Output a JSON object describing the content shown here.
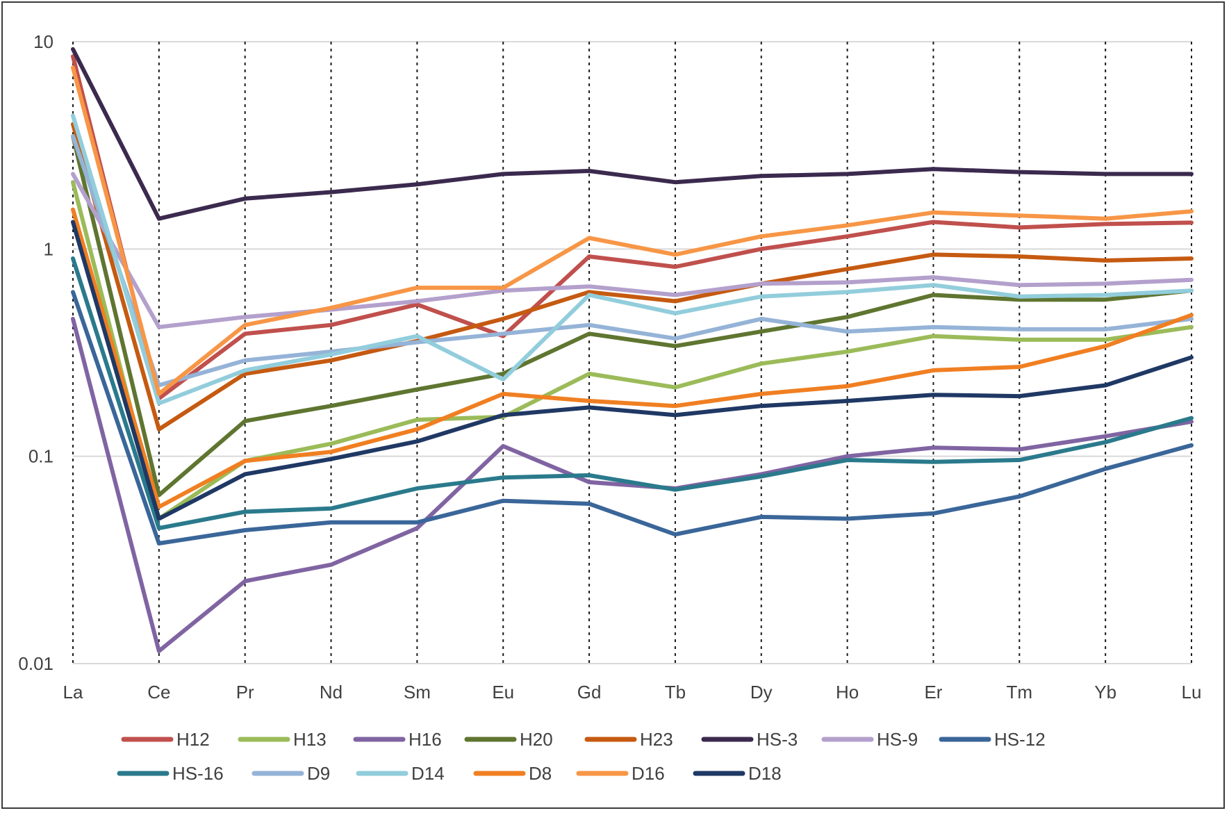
{
  "chart_data": {
    "type": "line",
    "title": "",
    "xlabel": "",
    "ylabel": "",
    "yscale": "log",
    "ylim": [
      0.01,
      10
    ],
    "y_ticks": [
      "10",
      "1",
      "0.1",
      "0.01"
    ],
    "y_tick_values": [
      10,
      1,
      0.1,
      0.01
    ],
    "categories": [
      "La",
      "Ce",
      "Pr",
      "Nd",
      "Sm",
      "Eu",
      "Gd",
      "Tb",
      "Dy",
      "Ho",
      "Er",
      "Tm",
      "Yb",
      "Lu"
    ],
    "grid": {
      "horizontal": true,
      "vertical_dotted": true
    },
    "legend_position": "bottom",
    "series": [
      {
        "name": "H12",
        "color": "#C0504D",
        "values": [
          8.5,
          0.19,
          0.39,
          0.43,
          0.54,
          0.38,
          0.92,
          0.82,
          1.0,
          1.15,
          1.35,
          1.27,
          1.32,
          1.34
        ]
      },
      {
        "name": "H13",
        "color": "#9BBB59",
        "values": [
          2.1,
          0.05,
          0.095,
          0.115,
          0.15,
          0.155,
          0.25,
          0.215,
          0.28,
          0.32,
          0.38,
          0.365,
          0.365,
          0.42
        ]
      },
      {
        "name": "H16",
        "color": "#8064A2",
        "values": [
          0.46,
          0.0115,
          0.025,
          0.03,
          0.045,
          0.112,
          0.075,
          0.07,
          0.082,
          0.1,
          0.11,
          0.108,
          0.125,
          0.147
        ]
      },
      {
        "name": "H20",
        "color": "#5F7530",
        "values": [
          3.5,
          0.065,
          0.148,
          0.175,
          0.21,
          0.25,
          0.39,
          0.34,
          0.4,
          0.47,
          0.6,
          0.57,
          0.57,
          0.63
        ]
      },
      {
        "name": "H23",
        "color": "#C55A11",
        "values": [
          4.0,
          0.135,
          0.25,
          0.29,
          0.36,
          0.46,
          0.62,
          0.56,
          0.68,
          0.8,
          0.94,
          0.92,
          0.88,
          0.9
        ]
      },
      {
        "name": "HS-3",
        "color": "#3B2A4E",
        "values": [
          9.2,
          1.4,
          1.75,
          1.88,
          2.05,
          2.3,
          2.38,
          2.1,
          2.25,
          2.3,
          2.43,
          2.35,
          2.3,
          2.3
        ]
      },
      {
        "name": "HS-9",
        "color": "#B4A0CC",
        "values": [
          2.3,
          0.42,
          0.47,
          0.51,
          0.56,
          0.63,
          0.66,
          0.6,
          0.68,
          0.69,
          0.73,
          0.67,
          0.68,
          0.71
        ]
      },
      {
        "name": "HS-12",
        "color": "#3A6699",
        "values": [
          0.62,
          0.038,
          0.044,
          0.048,
          0.048,
          0.061,
          0.059,
          0.042,
          0.051,
          0.05,
          0.053,
          0.064,
          0.087,
          0.113
        ]
      },
      {
        "name": "HS-16",
        "color": "#2A7A8C",
        "values": [
          0.9,
          0.045,
          0.054,
          0.056,
          0.07,
          0.079,
          0.081,
          0.069,
          0.08,
          0.096,
          0.094,
          0.096,
          0.117,
          0.153
        ]
      },
      {
        "name": "D9",
        "color": "#95B3D7",
        "values": [
          3.5,
          0.22,
          0.29,
          0.32,
          0.355,
          0.39,
          0.43,
          0.37,
          0.46,
          0.4,
          0.42,
          0.41,
          0.41,
          0.46
        ]
      },
      {
        "name": "D14",
        "color": "#92CDDC",
        "values": [
          4.4,
          0.18,
          0.26,
          0.31,
          0.38,
          0.235,
          0.6,
          0.49,
          0.59,
          0.62,
          0.67,
          0.59,
          0.6,
          0.63
        ]
      },
      {
        "name": "D8",
        "color": "#F07F22",
        "values": [
          1.55,
          0.057,
          0.095,
          0.105,
          0.135,
          0.2,
          0.185,
          0.175,
          0.2,
          0.218,
          0.26,
          0.27,
          0.34,
          0.48
        ]
      },
      {
        "name": "D16",
        "color": "#F79646",
        "values": [
          7.5,
          0.2,
          0.43,
          0.52,
          0.65,
          0.65,
          1.13,
          0.94,
          1.15,
          1.3,
          1.5,
          1.45,
          1.4,
          1.52
        ]
      },
      {
        "name": "D18",
        "color": "#1F3864",
        "values": [
          1.35,
          0.05,
          0.082,
          0.097,
          0.118,
          0.158,
          0.172,
          0.158,
          0.175,
          0.185,
          0.198,
          0.195,
          0.22,
          0.3
        ]
      }
    ]
  }
}
